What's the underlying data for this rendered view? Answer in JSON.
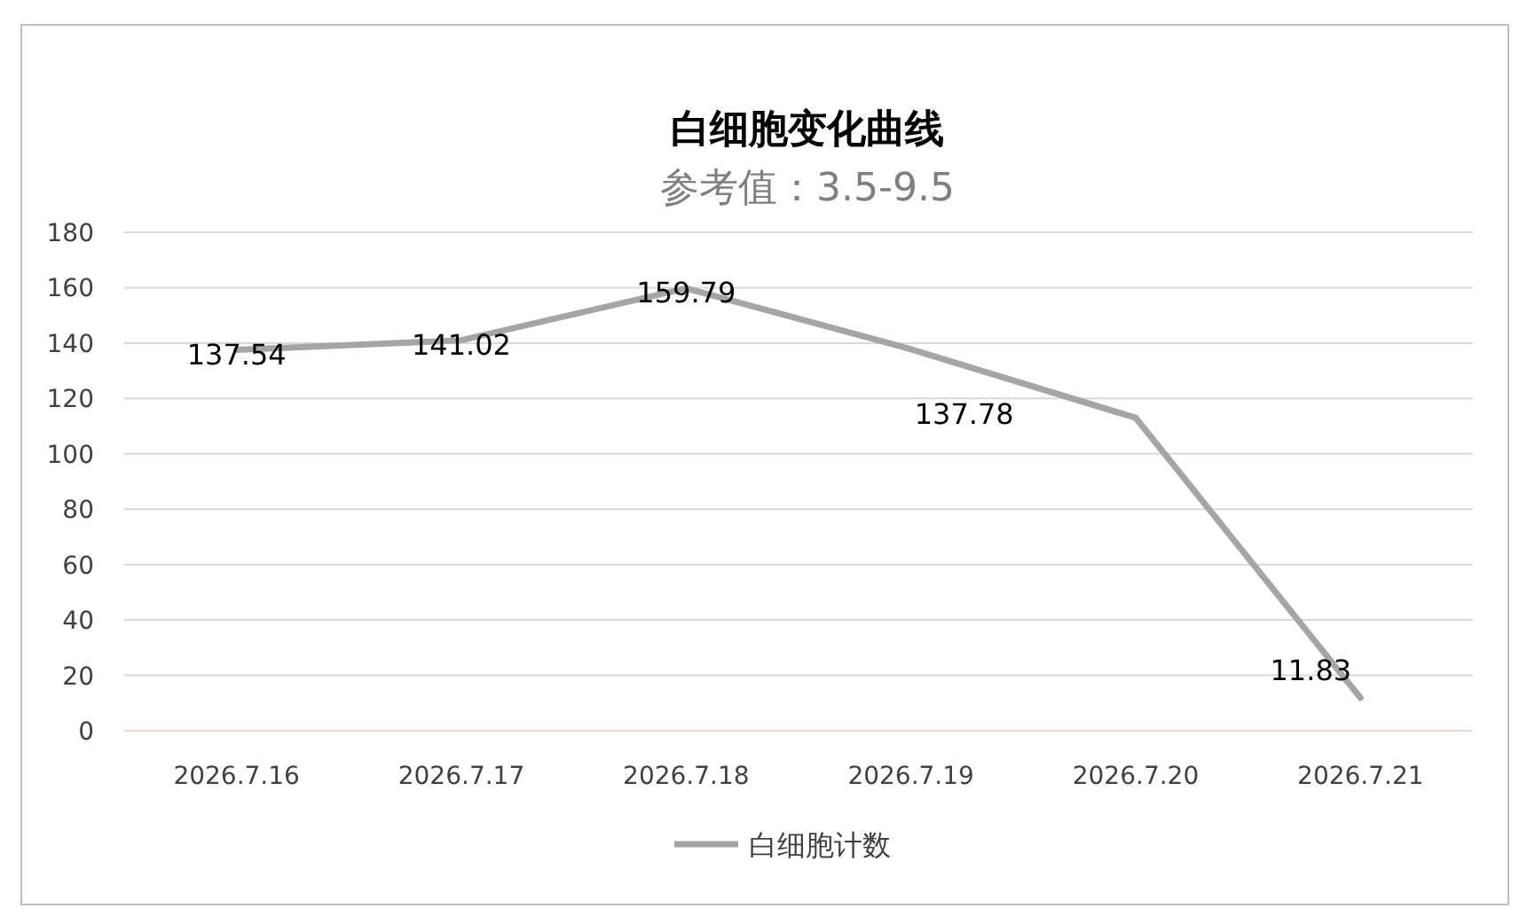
{
  "chart_data": {
    "type": "line",
    "title": "白细胞变化曲线",
    "subtitle": "参考值：3.5-9.5",
    "categories": [
      "2026.7.16",
      "2026.7.17",
      "2026.7.18",
      "2026.7.19",
      "2026.7.20",
      "2026.7.21"
    ],
    "series": [
      {
        "name": "白细胞计数",
        "color": "#a5a5a5",
        "values": [
          137.54,
          141.02,
          159.79,
          137.78,
          113,
          11.83
        ],
        "value_labels": [
          "137.54",
          "141.02",
          "159.79",
          "137.78",
          null,
          "11.83"
        ]
      }
    ],
    "ylim": [
      0,
      180
    ],
    "yticks": [
      0,
      20,
      40,
      60,
      80,
      100,
      120,
      140,
      160,
      180
    ],
    "grid": "y",
    "legend": "bottom",
    "marker": "none",
    "line_style": "solid"
  }
}
